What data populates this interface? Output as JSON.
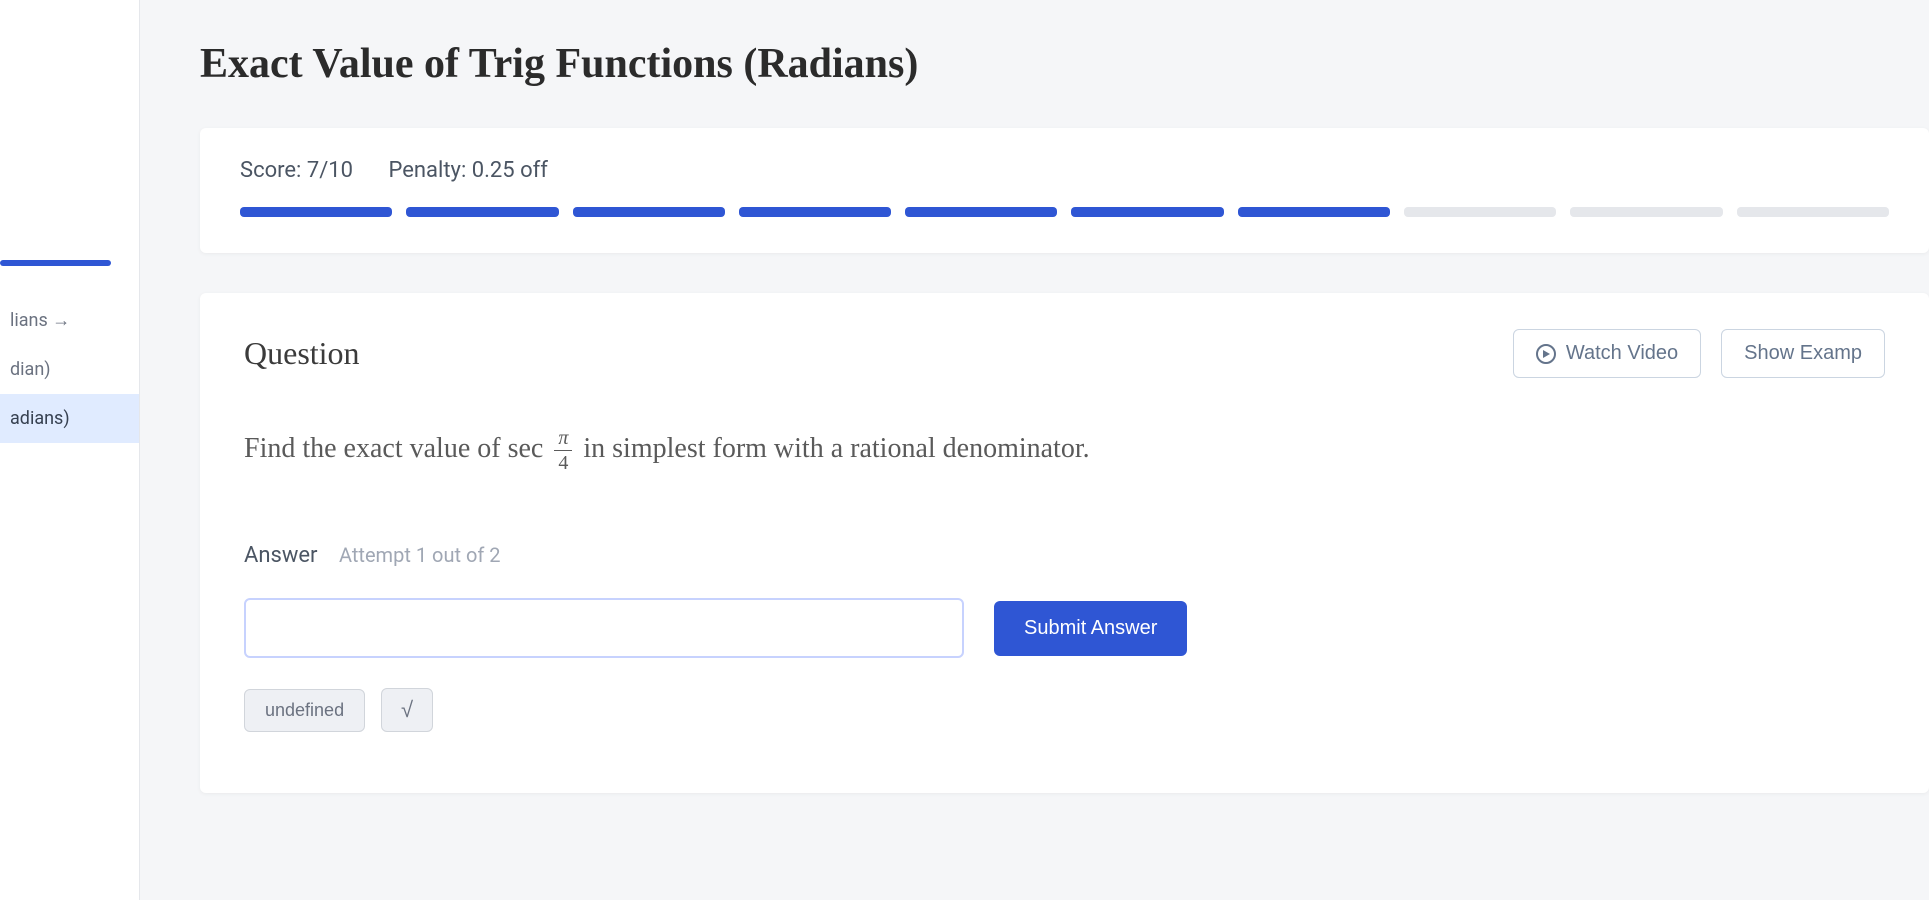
{
  "page": {
    "title": "Exact Value of Trig Functions (Radians)"
  },
  "sidebar": {
    "items": [
      {
        "label": "lians →"
      },
      {
        "label": "dian)"
      },
      {
        "label": "adians)"
      }
    ],
    "active_index": 2
  },
  "score": {
    "score_label": "Score:",
    "score_value": "7/10",
    "penalty_label": "Penalty:",
    "penalty_value": "0.25 off",
    "segments_total": 10,
    "segments_filled": 7,
    "filled_color": "#2f56d4",
    "empty_color": "#e5e7eb"
  },
  "question": {
    "heading": "Question",
    "watch_video_label": "Watch Video",
    "show_examples_label": "Show Examp",
    "prompt_prefix": "Find the exact value of sec",
    "fraction_num": "π",
    "fraction_den": "4",
    "prompt_suffix": "in simplest form with a rational denominator."
  },
  "answer": {
    "heading": "Answer",
    "attempt_text": "Attempt 1 out of 2",
    "input_value": "",
    "submit_label": "Submit Answer",
    "undefined_label": "undefined",
    "sqrt_symbol": "√"
  },
  "colors": {
    "accent": "#2f56d4",
    "background": "#f5f6f8",
    "panel": "#ffffff",
    "text_muted": "#6b7280"
  }
}
